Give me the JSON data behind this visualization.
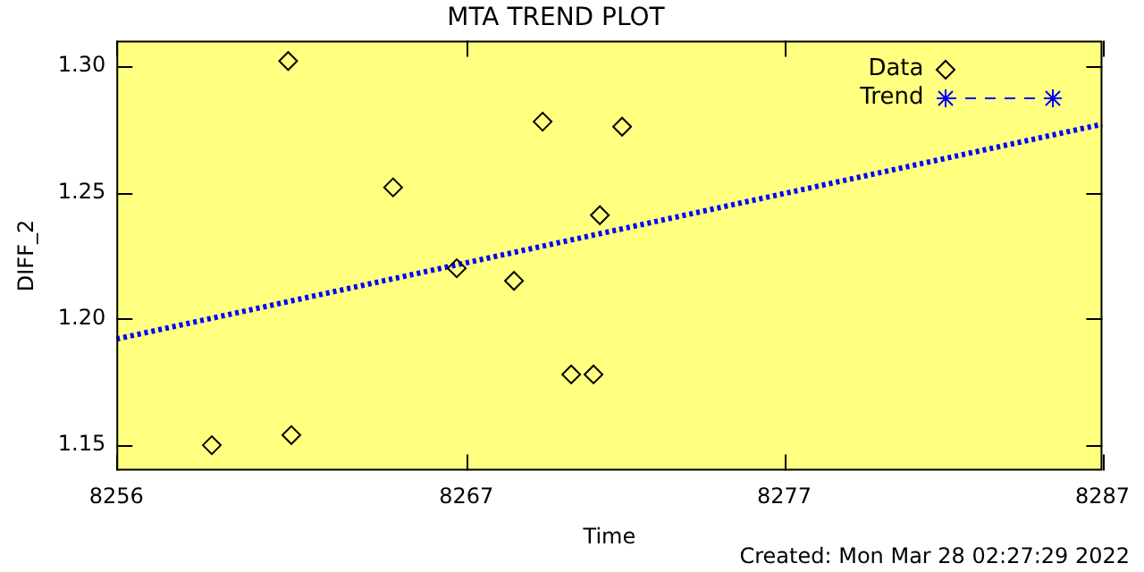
{
  "chart_data": {
    "type": "scatter",
    "title": "MTA TREND PLOT",
    "xlabel": "Time",
    "ylabel": "DIFF_2",
    "annotations": [
      "Created: Mon Mar 28 02:27:29 2022"
    ],
    "xlim": [
      8256,
      8287
    ],
    "xticks": [
      8256,
      8267,
      8277,
      8287
    ],
    "ylim": [
      1.14,
      1.31
    ],
    "yticks": [
      {
        "value": 1.15,
        "label": "1.15"
      },
      {
        "value": 1.2,
        "label": "1.20"
      },
      {
        "value": 1.25,
        "label": "1.25"
      },
      {
        "value": 1.3,
        "label": "1.30"
      }
    ],
    "legend": "top right",
    "marker": "diamond",
    "grid": false,
    "series": [
      {
        "name": "Data",
        "color": "#000000",
        "x": [
          8259.0,
          8261.4,
          8261.5,
          8264.7,
          8266.7,
          8268.5,
          8269.4,
          8270.3,
          8271.0,
          8271.2,
          8271.9
        ],
        "values": [
          1.15,
          1.302,
          1.154,
          1.252,
          1.22,
          1.215,
          1.278,
          1.178,
          1.178,
          1.241,
          1.276
        ]
      },
      {
        "name": "Trend",
        "type": "line",
        "color": "#0000ff",
        "marker": "none",
        "line_style": "dotted",
        "x": [
          8256,
          8287
        ],
        "values": [
          1.192,
          1.277
        ]
      }
    ]
  }
}
